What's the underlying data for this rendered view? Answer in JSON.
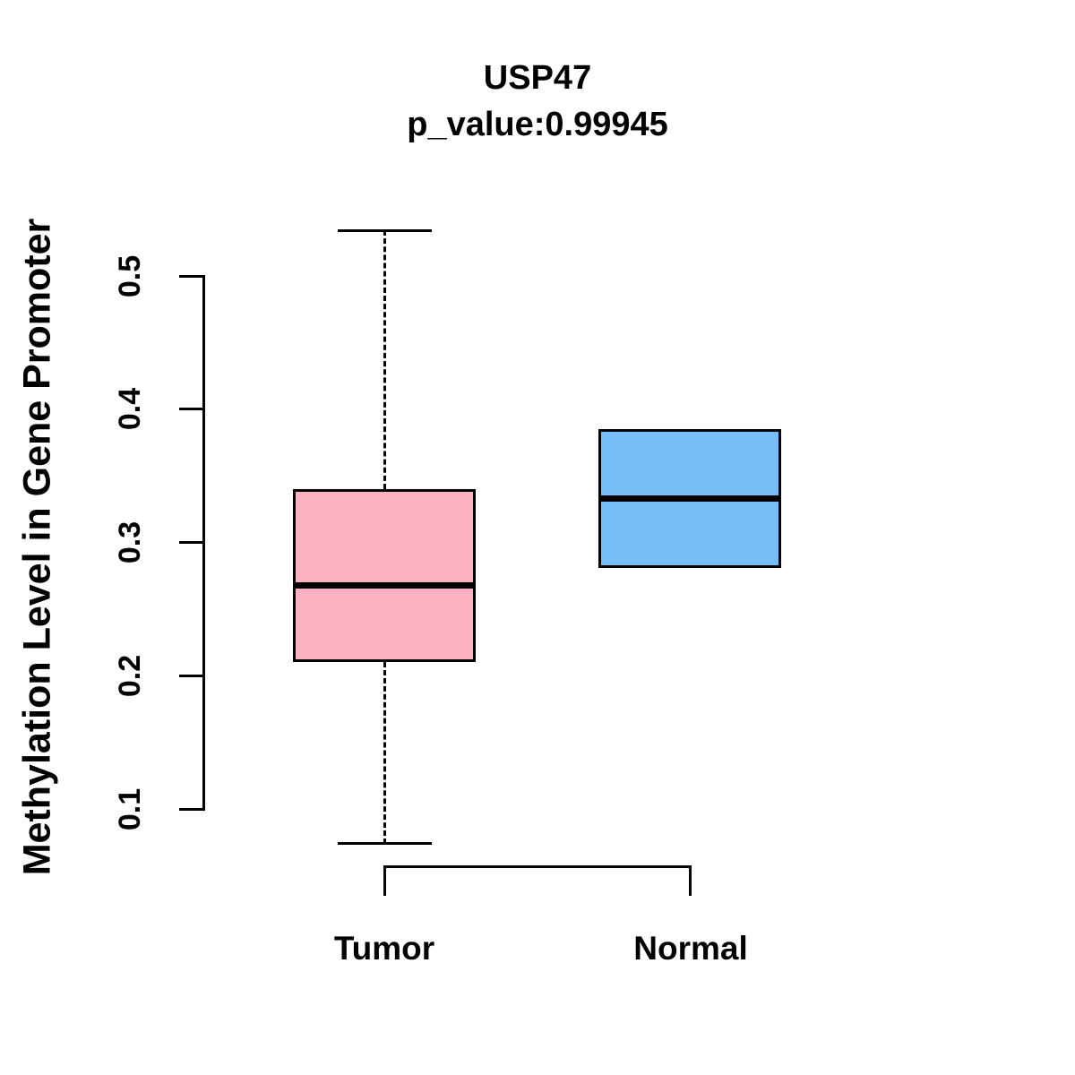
{
  "page": {
    "background": "#FFFFFF",
    "text_color": "#000000",
    "axis_color": "#000000"
  },
  "chart_data": {
    "type": "boxplot",
    "title": "USP47",
    "subtitle": "p_value:0.99945",
    "ylabel": "Methylation Level in Gene Promoter",
    "xlabel": "",
    "ylim": [
      0.1,
      0.5
    ],
    "yticks": [
      0.1,
      0.2,
      0.3,
      0.4,
      0.5
    ],
    "grid": false,
    "legend": null,
    "categories": [
      "Tumor",
      "Normal"
    ],
    "groups": [
      {
        "label": "Tumor",
        "fill": "#FCB1C3",
        "stroke": "#000000",
        "stats": {
          "whisker_low": 0.074,
          "q1": 0.21,
          "median": 0.268,
          "q3": 0.34,
          "whisker_high": 0.534
        }
      },
      {
        "label": "Normal",
        "fill": "#75BEF8",
        "stroke": "#000000",
        "stats": {
          "whisker_low": 0.281,
          "q1": 0.281,
          "median": 0.333,
          "q3": 0.385,
          "whisker_high": 0.385
        }
      }
    ]
  }
}
